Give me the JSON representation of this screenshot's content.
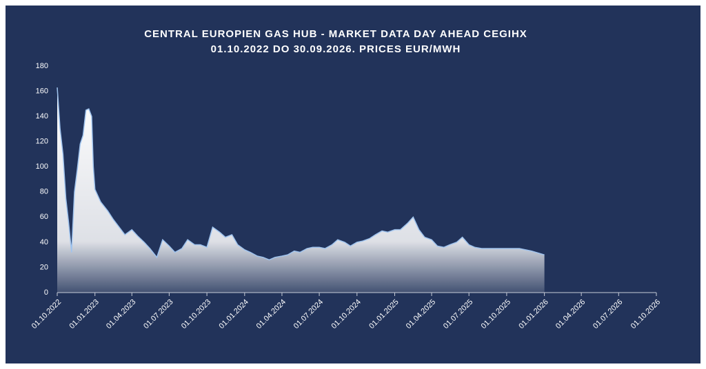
{
  "chart_data": {
    "type": "area",
    "title": "CENTRAL EUROPIEN GAS HUB - MARKET DATA DAY AHEAD CEGIHX",
    "subtitle": "01.10.2022 DO 30.09.2026. PRICES EUR/MWH",
    "color": "#ffffff",
    "background": "#22335a",
    "x": [
      "01.10.2022",
      "08.10.2022",
      "15.10.2022",
      "22.10.2022",
      "29.10.2022",
      "05.11.2022",
      "12.11.2022",
      "19.11.2022",
      "26.11.2022",
      "03.12.2022",
      "10.12.2022",
      "17.12.2022",
      "24.12.2022",
      "28.12.2022",
      "01.01.2023",
      "15.01.2023",
      "01.02.2023",
      "15.02.2023",
      "01.03.2023",
      "15.03.2023",
      "01.04.2023",
      "15.04.2023",
      "01.05.2023",
      "15.05.2023",
      "01.06.2023",
      "15.06.2023",
      "01.07.2023",
      "15.07.2023",
      "01.08.2023",
      "15.08.2023",
      "01.09.2023",
      "15.09.2023",
      "01.10.2023",
      "15.10.2023",
      "01.11.2023",
      "15.11.2023",
      "01.12.2023",
      "15.12.2023",
      "01.01.2024",
      "15.01.2024",
      "01.02.2024",
      "15.02.2024",
      "01.03.2024",
      "15.03.2024",
      "01.04.2024",
      "15.04.2024",
      "01.05.2024",
      "15.05.2024",
      "01.06.2024",
      "15.06.2024",
      "01.07.2024",
      "15.07.2024",
      "01.08.2024",
      "15.08.2024",
      "01.09.2024",
      "15.09.2024",
      "01.10.2024",
      "15.10.2024",
      "01.11.2024",
      "15.11.2024",
      "01.12.2024",
      "15.12.2024",
      "01.01.2025",
      "15.01.2025",
      "01.02.2025",
      "15.02.2025",
      "01.03.2025",
      "15.03.2025",
      "01.04.2025",
      "15.04.2025",
      "01.05.2025",
      "15.05.2025",
      "01.06.2025",
      "15.06.2025",
      "01.07.2025",
      "15.07.2025",
      "01.08.2025",
      "01.09.2025",
      "01.10.2025",
      "01.11.2025",
      "01.12.2025",
      "01.01.2026"
    ],
    "values": [
      163,
      130,
      110,
      75,
      55,
      32,
      80,
      98,
      118,
      125,
      145,
      146,
      140,
      100,
      82,
      72,
      65,
      58,
      52,
      46,
      50,
      45,
      40,
      35,
      28,
      42,
      37,
      32,
      35,
      42,
      38,
      38,
      36,
      52,
      48,
      44,
      46,
      38,
      34,
      32,
      29,
      28,
      26,
      28,
      29,
      30,
      33,
      32,
      35,
      36,
      36,
      35,
      38,
      42,
      40,
      37,
      40,
      41,
      43,
      46,
      49,
      48,
      50,
      50,
      55,
      60,
      50,
      44,
      42,
      37,
      36,
      38,
      40,
      44,
      38,
      36,
      35,
      35,
      35,
      35,
      33,
      30
    ],
    "xlim": [
      "01.10.2022",
      "01.10.2026"
    ],
    "xticks": [
      "01.10.2022",
      "01.01.2023",
      "01.04.2023",
      "01.07.2023",
      "01.10.2023",
      "01.01.2024",
      "01.04.2024",
      "01.07.2024",
      "01.10.2024",
      "01.01.2025",
      "01.04.2025",
      "01.07.2025",
      "01.10.2025",
      "01.01.2026",
      "01.04.2026",
      "01.07.2026",
      "01.10.2026"
    ],
    "ylim": [
      0,
      180
    ],
    "yticks": [
      0,
      20,
      40,
      60,
      80,
      100,
      120,
      140,
      160,
      180
    ]
  }
}
